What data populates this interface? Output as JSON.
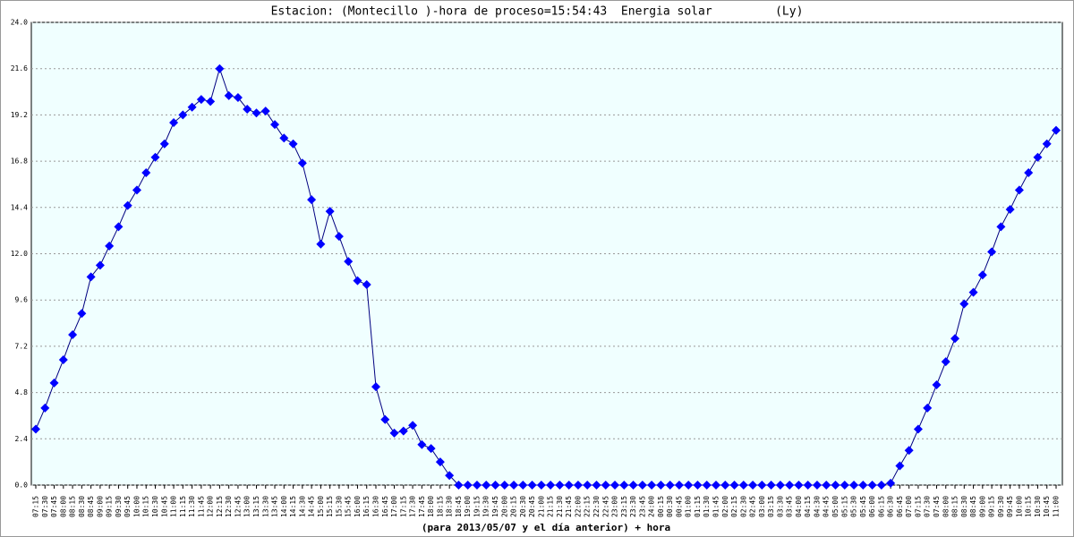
{
  "chart_data": {
    "type": "line",
    "title": "Estacion: (Montecillo )-hora de proceso=15:54:43  Energia solar         (Ly)",
    "x_label": "(para 2013/05/07 y el día anterior) + hora",
    "color": "#0000ff",
    "line_color": "#000080",
    "grid": true,
    "ylim": [
      0,
      24
    ],
    "yticks": [
      {
        "value": 0,
        "label": "0.0"
      },
      2.4,
      4.8,
      7.2,
      9.6,
      {
        "value": 12,
        "label": "12.0"
      },
      14.4,
      16.8,
      19.2,
      21.6,
      {
        "value": 24,
        "label": "24.0"
      }
    ],
    "categories": [
      "07:15",
      "07:30",
      "07:45",
      "08:00",
      "08:15",
      "08:30",
      "08:45",
      "09:00",
      "09:15",
      "09:30",
      "09:45",
      "10:00",
      "10:15",
      "10:30",
      "10:45",
      "11:00",
      "11:15",
      "11:30",
      "11:45",
      "12:00",
      "12:15",
      "12:30",
      "12:45",
      "13:00",
      "13:15",
      "13:30",
      "13:45",
      "14:00",
      "14:15",
      "14:30",
      "14:45",
      "15:00",
      "15:15",
      "15:30",
      "15:45",
      "16:00",
      "16:15",
      "16:30",
      "16:45",
      "17:00",
      "17:15",
      "17:30",
      "17:45",
      "18:00",
      "18:15",
      "18:30",
      "18:45",
      "19:00",
      "19:15",
      "19:30",
      "19:45",
      "20:00",
      "20:15",
      "20:30",
      "20:45",
      "21:00",
      "21:15",
      "21:30",
      "21:45",
      "22:00",
      "22:15",
      "22:30",
      "22:45",
      "23:00",
      "23:15",
      "23:30",
      "23:45",
      "24:00",
      "00:15",
      "00:30",
      "00:45",
      "01:00",
      "01:15",
      "01:30",
      "01:45",
      "02:00",
      "02:15",
      "02:30",
      "02:45",
      "03:00",
      "03:15",
      "03:30",
      "03:45",
      "04:00",
      "04:15",
      "04:30",
      "04:45",
      "05:00",
      "05:15",
      "05:30",
      "05:45",
      "06:00",
      "06:15",
      "06:30",
      "06:45",
      "07:00",
      "07:15",
      "07:30",
      "07:45",
      "08:00",
      "08:15",
      "08:30",
      "08:45",
      "09:00",
      "09:15",
      "09:30",
      "09:45",
      "10:00",
      "10:15",
      "10:30",
      "10:45",
      "11:00"
    ],
    "values": [
      2.9,
      4.0,
      5.3,
      6.5,
      7.8,
      8.9,
      10.8,
      11.4,
      12.4,
      13.4,
      14.5,
      15.3,
      16.2,
      17.0,
      17.7,
      18.8,
      19.2,
      19.6,
      20.0,
      19.9,
      21.6,
      20.2,
      20.1,
      19.5,
      19.3,
      19.4,
      18.7,
      18.0,
      17.7,
      16.7,
      14.8,
      12.5,
      14.2,
      12.9,
      11.6,
      10.6,
      10.4,
      5.1,
      3.4,
      2.7,
      2.8,
      3.1,
      2.1,
      1.9,
      1.2,
      0.5,
      0,
      0,
      0,
      0,
      0,
      0,
      0,
      0,
      0,
      0,
      0,
      0,
      0,
      0,
      0,
      0,
      0,
      0,
      0,
      0,
      0,
      0,
      0,
      0,
      0,
      0,
      0,
      0,
      0,
      0,
      0,
      0,
      0,
      0,
      0,
      0,
      0,
      0,
      0,
      0,
      0,
      0,
      0,
      0,
      0,
      0,
      0,
      0.1,
      1.0,
      1.8,
      2.9,
      4.0,
      5.2,
      6.4,
      7.6,
      9.4,
      10.0,
      10.9,
      12.1,
      13.4,
      14.3,
      15.3,
      16.2,
      17.0,
      17.7,
      18.4
    ]
  }
}
